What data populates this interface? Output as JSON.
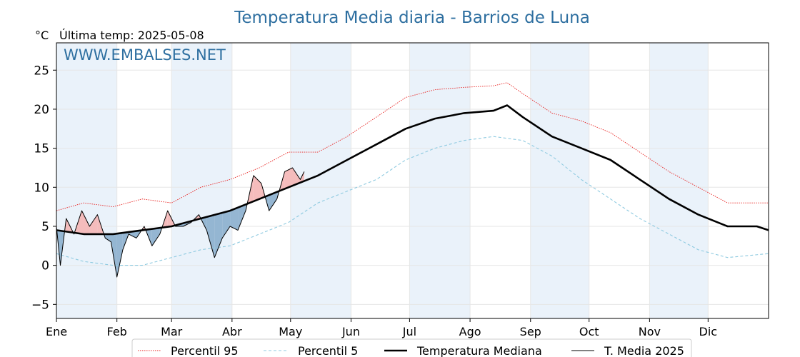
{
  "chart_data": {
    "type": "line",
    "title": "Temperatura Media diaria - Barrios de Luna",
    "unit_label": "°C",
    "last_temp": "Última temp: 2025-05-08",
    "watermark": "WWW.EMBALSES.NET",
    "ylim": [
      -6.8,
      28.5
    ],
    "xlim": [
      1,
      366
    ],
    "y_ticks": [
      -5,
      0,
      5,
      10,
      15,
      20,
      25
    ],
    "y_tick_labels": [
      "−5",
      "0",
      "5",
      "10",
      "15",
      "20",
      "25"
    ],
    "month_labels": [
      "Ene",
      "Feb",
      "Mar",
      "Abr",
      "May",
      "Jun",
      "Jul",
      "Ago",
      "Sep",
      "Oct",
      "Nov",
      "Dic"
    ],
    "month_start_days": [
      1,
      32,
      60,
      91,
      121,
      152,
      182,
      213,
      244,
      274,
      305,
      335
    ],
    "shaded_month_indices": [
      0,
      2,
      4,
      6,
      8,
      10
    ],
    "grid": true,
    "legend_position": "bottom",
    "colors": {
      "p95": "#e8211f",
      "p5": "#8ecae0",
      "median": "#000000",
      "current": "#000000",
      "above": "#f4b8b8",
      "below": "#8fb2d0",
      "shade": "#eaf2fa",
      "title": "#2e6fa0"
    },
    "series": [
      {
        "name": "Percentil 95",
        "style": "dotted-red",
        "x": [
          1,
          15,
          30,
          45,
          60,
          75,
          90,
          105,
          120,
          135,
          150,
          165,
          180,
          195,
          210,
          225,
          232,
          240,
          255,
          270,
          285,
          300,
          315,
          330,
          345,
          366
        ],
        "values": [
          7.0,
          8.0,
          7.5,
          8.5,
          8.0,
          10.0,
          11.0,
          12.5,
          14.5,
          14.5,
          16.5,
          19.0,
          21.5,
          22.5,
          22.8,
          23.0,
          23.4,
          22.0,
          19.5,
          18.5,
          17.0,
          14.5,
          12.0,
          10.0,
          8.0,
          8.0
        ]
      },
      {
        "name": "Percentil 5",
        "style": "dashed-lightblue",
        "x": [
          1,
          15,
          30,
          45,
          60,
          75,
          90,
          105,
          120,
          135,
          150,
          165,
          180,
          195,
          210,
          225,
          240,
          255,
          270,
          285,
          300,
          315,
          330,
          345,
          366
        ],
        "values": [
          1.5,
          0.5,
          0.0,
          0.0,
          1.0,
          2.0,
          2.5,
          4.0,
          5.5,
          8.0,
          9.5,
          11.0,
          13.5,
          15.0,
          16.0,
          16.5,
          16.0,
          14.0,
          11.0,
          8.5,
          6.0,
          4.0,
          2.0,
          1.0,
          1.5
        ]
      },
      {
        "name": "Temperatura Mediana",
        "style": "thick-black",
        "x": [
          1,
          15,
          30,
          45,
          60,
          75,
          90,
          105,
          120,
          135,
          150,
          165,
          180,
          195,
          210,
          225,
          232,
          240,
          255,
          270,
          285,
          300,
          315,
          330,
          345,
          360,
          366
        ],
        "values": [
          4.5,
          4.0,
          4.0,
          4.5,
          5.0,
          6.0,
          7.0,
          8.5,
          10.0,
          11.5,
          13.5,
          15.5,
          17.5,
          18.8,
          19.5,
          19.8,
          20.5,
          19.0,
          16.5,
          15.0,
          13.5,
          11.0,
          8.5,
          6.5,
          5.0,
          5.0,
          4.5
        ]
      },
      {
        "name": "T. Media 2025",
        "style": "thin-black",
        "x": [
          1,
          3,
          6,
          10,
          14,
          18,
          22,
          26,
          29,
          32,
          35,
          38,
          42,
          46,
          50,
          54,
          58,
          62,
          66,
          70,
          74,
          78,
          82,
          86,
          90,
          94,
          98,
          102,
          106,
          110,
          114,
          118,
          122,
          126,
          128
        ],
        "values": [
          5.0,
          0.0,
          6.0,
          4.0,
          7.0,
          5.0,
          6.5,
          3.5,
          3.0,
          -1.5,
          2.0,
          4.0,
          3.5,
          5.0,
          2.5,
          4.0,
          7.0,
          5.0,
          5.0,
          5.5,
          6.5,
          4.5,
          1.0,
          3.5,
          5.0,
          4.5,
          7.0,
          11.5,
          10.5,
          7.0,
          8.5,
          12.0,
          12.5,
          11.0,
          12.0
        ]
      }
    ]
  }
}
